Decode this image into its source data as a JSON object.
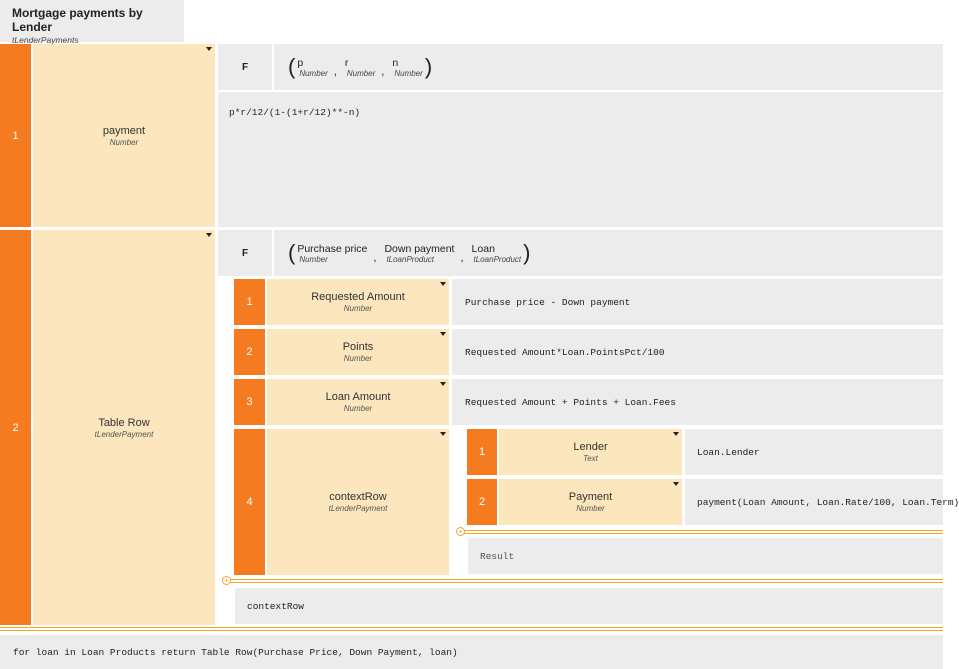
{
  "title": {
    "name": "Mortgage payments by Lender",
    "type": "tLenderPayments"
  },
  "rows": [
    {
      "num": "1",
      "name": "payment",
      "type": "Number",
      "kind": "F",
      "params": [
        {
          "name": "p",
          "type": "Number"
        },
        {
          "name": "r",
          "type": "Number"
        },
        {
          "name": "n",
          "type": "Number"
        }
      ],
      "body": "p*r/12/(1-(1+r/12)**-n)"
    },
    {
      "num": "2",
      "name": "Table Row",
      "type": "tLenderPayment",
      "kind": "F",
      "params": [
        {
          "name": "Purchase price",
          "type": "Number"
        },
        {
          "name": "Down payment",
          "type": "tLoanProduct"
        },
        {
          "name": "Loan",
          "type": "tLoanProduct"
        }
      ],
      "context": [
        {
          "num": "1",
          "name": "Requested Amount",
          "type": "Number",
          "expr": "Purchase price - Down payment"
        },
        {
          "num": "2",
          "name": "Points",
          "type": "Number",
          "expr": "Requested Amount*Loan.PointsPct/100"
        },
        {
          "num": "3",
          "name": "Loan Amount",
          "type": "Number",
          "expr": "Requested Amount + Points + Loan.Fees"
        },
        {
          "num": "4",
          "name": "contextRow",
          "type": "tLenderPayment",
          "context": [
            {
              "num": "1",
              "name": "Lender",
              "type": "Text",
              "expr": "Loan.Lender"
            },
            {
              "num": "2",
              "name": "Payment",
              "type": "Number",
              "expr": "payment(Loan Amount, Loan.Rate/100, Loan.Term)"
            }
          ],
          "result": "Result"
        }
      ],
      "result": "contextRow"
    }
  ],
  "final_expr": "for loan in Loan Products return Table Row(Purchase Price, Down Payment, loan)",
  "colors": {
    "number_cell": "#f57b20",
    "name_cell": "#fbe6bd",
    "expr_cell": "#ececec",
    "separator": "#f5a623"
  }
}
